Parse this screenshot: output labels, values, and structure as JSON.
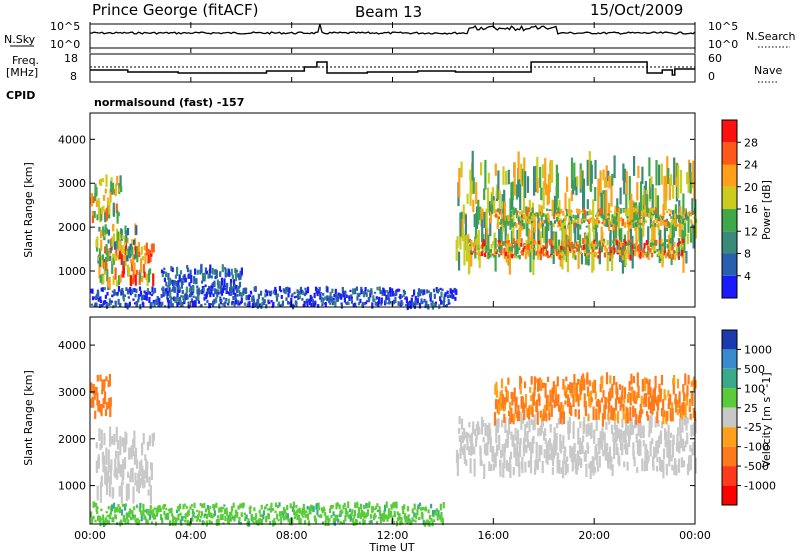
{
  "header": {
    "station": "Prince George (fitACF)",
    "beam": "Beam 13",
    "date": "15/Oct/2009"
  },
  "top_panels": {
    "sky_label": "N.Sky",
    "search_label": "N.Search",
    "freq_label_line1": "Freq.",
    "freq_label_line2": "[MHz]",
    "nave_label": "Nave",
    "cpid_label": "CPID",
    "cpid_text": "normalsound (fast) -157",
    "sky_ticks": [
      "10^5",
      "10^0"
    ],
    "search_ticks": [
      "10^5",
      "10^0"
    ],
    "freq_ticks": [
      "18",
      "8"
    ],
    "nave_ticks": [
      "60",
      "0"
    ]
  },
  "x_axis": {
    "label": "Time UT",
    "ticks": [
      "00:00",
      "04:00",
      "08:00",
      "12:00",
      "16:00",
      "20:00",
      "00:00"
    ]
  },
  "power_panel": {
    "ylabel": "Slant Range [km]",
    "yticks": [
      "1000",
      "2000",
      "3000",
      "4000"
    ],
    "cbar_label": "Power [dB]",
    "cbar_ticks": [
      "4",
      "8",
      "12",
      "16",
      "20",
      "24",
      "28"
    ],
    "cbar_colors": [
      "#1a1aff",
      "#2a5fb0",
      "#3a8a7a",
      "#3fa84a",
      "#cccc20",
      "#ff9f1a",
      "#ff5a1a",
      "#ff1010"
    ]
  },
  "velocity_panel": {
    "ylabel": "Slant Range [km]",
    "yticks": [
      "1000",
      "2000",
      "3000",
      "4000"
    ],
    "cbar_label": "Velocity [m s^-1]",
    "cbar_ticks": [
      "1000",
      "500",
      "100",
      "25",
      "-25",
      "-100",
      "-500",
      "-1000"
    ],
    "cbar_colors": [
      "#1a3ab0",
      "#3a8ad0",
      "#3aaa8a",
      "#5acc3a",
      "#c8c8c8",
      "#ff9f1a",
      "#ff7a1a",
      "#ff3a1a",
      "#ff0000"
    ]
  },
  "chart_data": [
    {
      "type": "heatmap",
      "title": "Power [dB]",
      "xlabel": "Time UT",
      "ylabel": "Slant Range [km]",
      "x_range_hours": [
        0,
        24
      ],
      "ylim": [
        180,
        4600
      ],
      "zlim": [
        0,
        30
      ],
      "blobs": [
        {
          "t": [
            0.3,
            2.5
          ],
          "r": [
            700,
            1700
          ],
          "level": 22
        },
        {
          "t": [
            0.0,
            1.2
          ],
          "r": [
            2200,
            3100
          ],
          "level": 18
        },
        {
          "t": [
            0.2,
            1.8
          ],
          "r": [
            1200,
            2000
          ],
          "level": 14
        },
        {
          "t": [
            2.8,
            6.0
          ],
          "r": [
            500,
            1100
          ],
          "level": 6
        },
        {
          "t": [
            0.0,
            14.5
          ],
          "r": [
            180,
            600
          ],
          "level": 5
        },
        {
          "t": [
            14.5,
            24.0
          ],
          "r": [
            1200,
            3400
          ],
          "level": 16
        },
        {
          "t": [
            15.0,
            23.5
          ],
          "r": [
            1300,
            1700
          ],
          "level": 22
        },
        {
          "t": [
            16.0,
            24.0
          ],
          "r": [
            2000,
            2400
          ],
          "level": 18
        }
      ]
    },
    {
      "type": "heatmap",
      "title": "Velocity [m s^-1]",
      "xlabel": "Time UT",
      "ylabel": "Slant Range [km]",
      "x_range_hours": [
        0,
        24
      ],
      "ylim": [
        180,
        4600
      ],
      "zlim": [
        -1000,
        1000
      ],
      "blobs": [
        {
          "t": [
            0.0,
            0.8
          ],
          "r": [
            2500,
            3300
          ],
          "level": -150
        },
        {
          "t": [
            0.2,
            2.5
          ],
          "r": [
            800,
            2100
          ],
          "level": 0
        },
        {
          "t": [
            0.0,
            14.0
          ],
          "r": [
            180,
            600
          ],
          "level": 80
        },
        {
          "t": [
            14.5,
            24.0
          ],
          "r": [
            1300,
            2400
          ],
          "level": 0
        },
        {
          "t": [
            16.0,
            24.0
          ],
          "r": [
            2400,
            3300
          ],
          "level": -120
        }
      ]
    }
  ]
}
